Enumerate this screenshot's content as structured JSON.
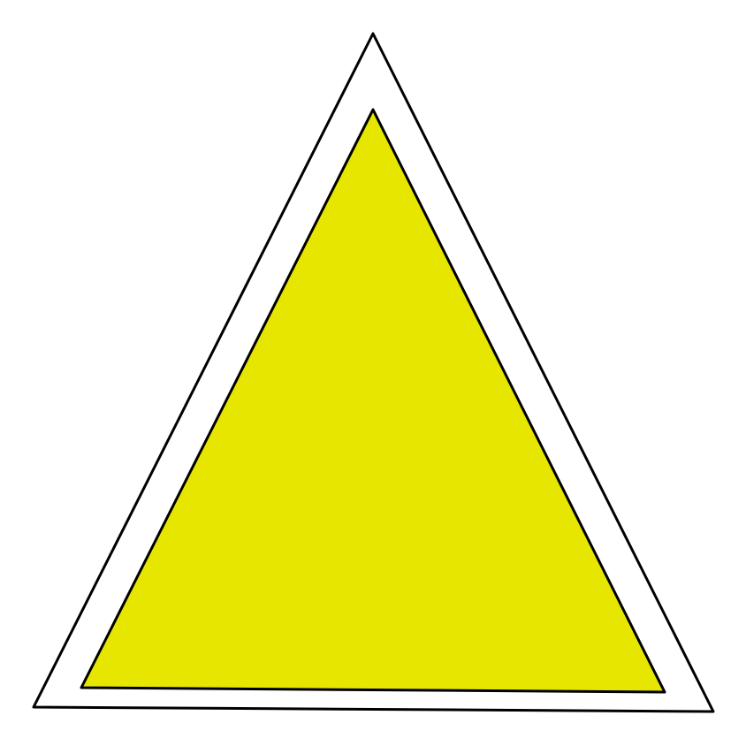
{
  "colors": {
    "background": "#ffffff",
    "outer_fill": "#ffffff",
    "inner_fill": "#e6e600",
    "stroke": "#000000"
  },
  "shapes": {
    "outer_triangle": "triangle-outline",
    "inner_triangle": "triangle-filled"
  }
}
